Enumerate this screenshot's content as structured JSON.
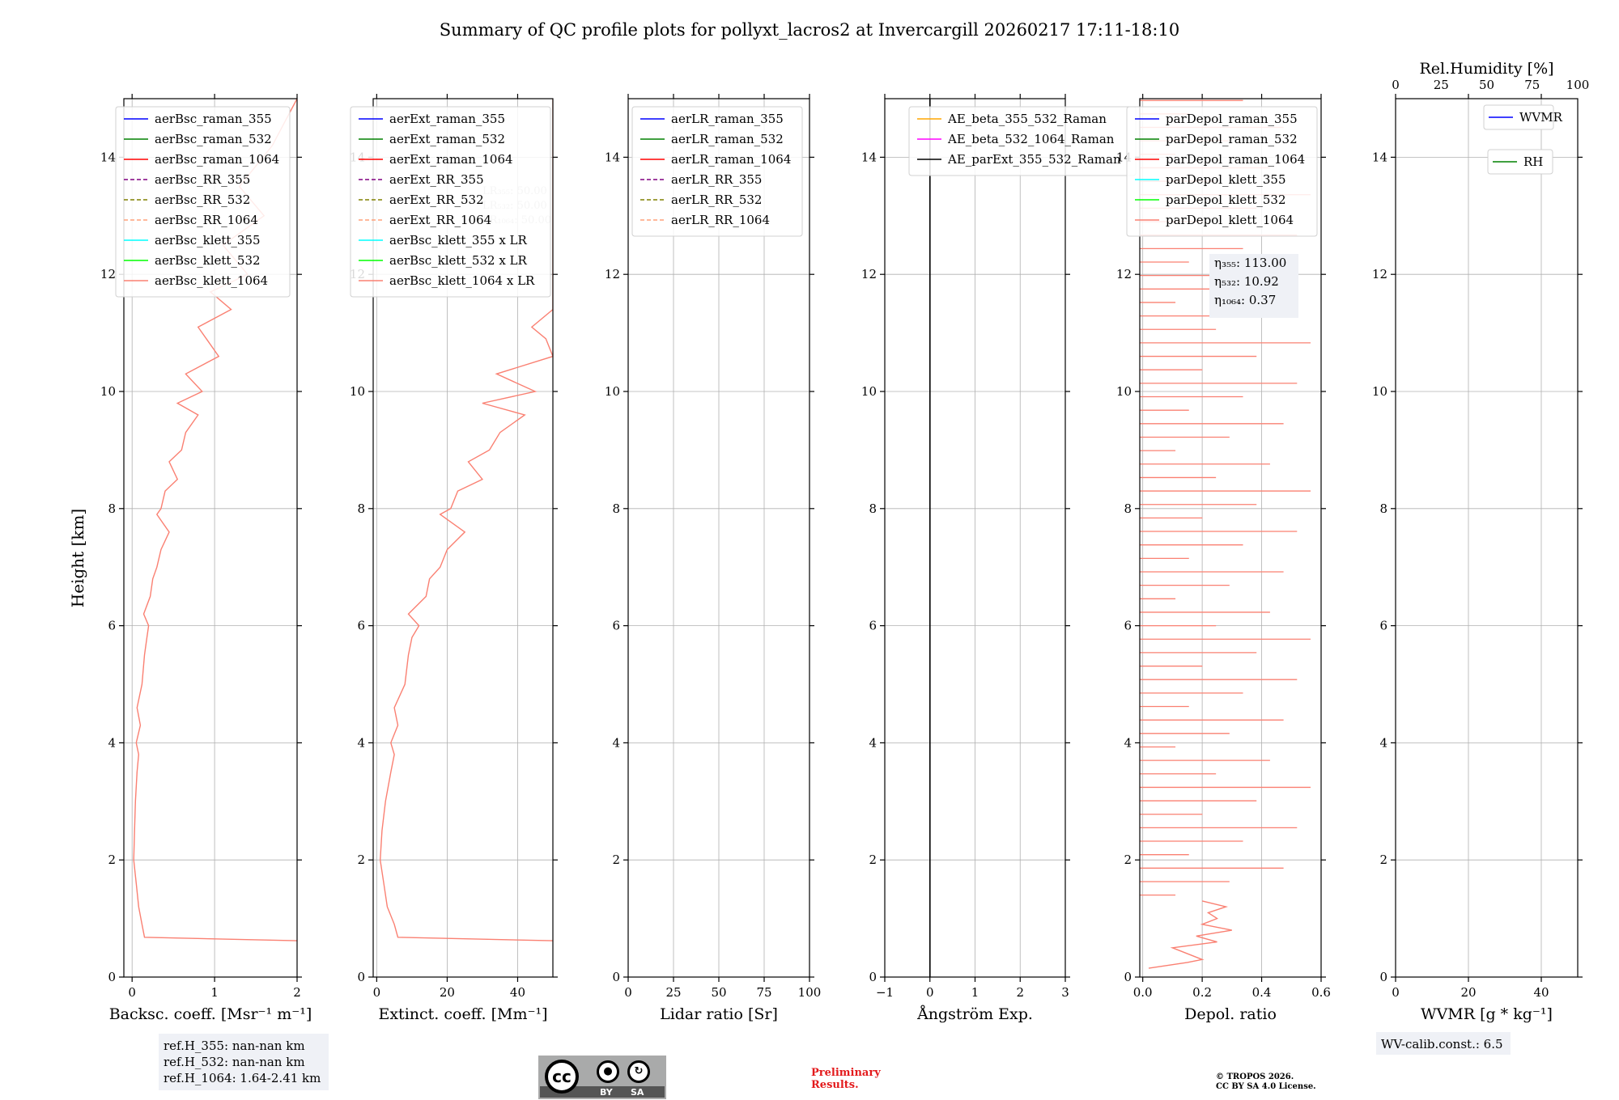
{
  "title": "Summary of QC profile plots for pollyxt_lacros2 at Invercargill 20260217 17:11-18:10",
  "ylabel": "Height [km]",
  "colors": {
    "profile": "#fa8072",
    "raman_355": "#0000ff",
    "raman_532": "#008000",
    "raman_1064": "#ff0000",
    "rr_355": "#800080",
    "rr_532": "#808000",
    "rr_1064": "#ffa07a",
    "klett_355": "#00ffff",
    "klett_532": "#00ff00",
    "klett_1064": "#fa8072",
    "ae_1": "#ffa500",
    "ae_2": "#ff00ff",
    "ae_3": "#000000",
    "wvmr": "#0000ff",
    "rh": "#008000",
    "preliminary": "#e31a1c"
  },
  "chart_data": [
    {
      "type": "line",
      "id": "bsc",
      "xlabel": "Backsc. coeff. [Msr⁻¹ m⁻¹]",
      "xlim": [
        -0.1,
        2
      ],
      "ylim": [
        0,
        15
      ],
      "xticks": [
        0,
        1,
        2
      ],
      "yticks": [
        0,
        2,
        4,
        6,
        8,
        10,
        12,
        14
      ],
      "legend": [
        "aerBsc_raman_355",
        "aerBsc_raman_532",
        "aerBsc_raman_1064",
        "aerBsc_RR_355",
        "aerBsc_RR_532",
        "aerBsc_RR_1064",
        "aerBsc_klett_355",
        "aerBsc_klett_532",
        "aerBsc_klett_1064"
      ],
      "series": [
        {
          "name": "aerBsc_klett_1064",
          "x": [
            2.0,
            0.15,
            0.12,
            0.08,
            0.05,
            0.02,
            0.03,
            0.04,
            0.06,
            0.08,
            0.05,
            0.1,
            0.06,
            0.12,
            0.15,
            0.18,
            0.2,
            0.14,
            0.22,
            0.25,
            0.3,
            0.35,
            0.45,
            0.3,
            0.35,
            0.4,
            0.55,
            0.45,
            0.6,
            0.65,
            0.8,
            0.55,
            0.85,
            0.65,
            1.05,
            0.9,
            0.8,
            1.2,
            0.95,
            1.4,
            1.1,
            1.6,
            1.3,
            1.7,
            2.0
          ],
          "y": [
            0.62,
            0.68,
            0.9,
            1.2,
            1.6,
            2.0,
            2.5,
            3.0,
            3.5,
            3.8,
            4.0,
            4.3,
            4.6,
            5.0,
            5.5,
            5.8,
            6.0,
            6.2,
            6.5,
            6.8,
            7.0,
            7.3,
            7.6,
            7.9,
            8.0,
            8.3,
            8.5,
            8.8,
            9.0,
            9.3,
            9.6,
            9.8,
            10.0,
            10.3,
            10.6,
            10.9,
            11.1,
            11.4,
            11.7,
            12.0,
            12.5,
            13.0,
            13.5,
            14.2,
            15.0
          ]
        }
      ]
    },
    {
      "type": "line",
      "id": "ext",
      "xlabel": "Extinct. coeff. [Mm⁻¹]",
      "xlim": [
        -1,
        50
      ],
      "ylim": [
        0,
        15
      ],
      "xticks": [
        0,
        20,
        40
      ],
      "yticks": [
        0,
        2,
        4,
        6,
        8,
        10,
        12,
        14
      ],
      "legend": [
        "aerExt_raman_355",
        "aerExt_raman_532",
        "aerExt_raman_1064",
        "aerExt_RR_355",
        "aerExt_RR_532",
        "aerExt_RR_1064",
        "aerBsc_klett_355 x LR",
        "aerBsc_klett_532 x LR",
        "aerBsc_klett_1064 x LR"
      ],
      "annotation": [
        "LR₃₅₅: 50.00",
        "LR₅₃₂: 50.00",
        "LR₁₀₆₄: 50.00"
      ],
      "series": [
        {
          "name": "aerBsc_klett_1064 x LR",
          "x": [
            50,
            6,
            5,
            3,
            2,
            1,
            1.5,
            2.5,
            4,
            5,
            4,
            6,
            5,
            8,
            9,
            10,
            12,
            9,
            14,
            15,
            18,
            20,
            25,
            18,
            21,
            23,
            30,
            26,
            32,
            35,
            42,
            30,
            45,
            34,
            50,
            48,
            44,
            50,
            50
          ],
          "y": [
            0.62,
            0.68,
            0.9,
            1.2,
            1.6,
            2.0,
            2.5,
            3.0,
            3.5,
            3.8,
            4.0,
            4.3,
            4.6,
            5.0,
            5.5,
            5.8,
            6.0,
            6.2,
            6.5,
            6.8,
            7.0,
            7.3,
            7.6,
            7.9,
            8.0,
            8.3,
            8.5,
            8.8,
            9.0,
            9.3,
            9.6,
            9.8,
            10.0,
            10.3,
            10.6,
            10.9,
            11.1,
            11.4,
            15.0
          ]
        }
      ]
    },
    {
      "type": "line",
      "id": "lr",
      "xlabel": "Lidar ratio [Sr]",
      "xlim": [
        0,
        100
      ],
      "ylim": [
        0,
        15
      ],
      "xticks": [
        0,
        25,
        50,
        75,
        100
      ],
      "yticks": [
        0,
        2,
        4,
        6,
        8,
        10,
        12,
        14
      ],
      "legend": [
        "aerLR_raman_355",
        "aerLR_raman_532",
        "aerLR_raman_1064",
        "aerLR_RR_355",
        "aerLR_RR_532",
        "aerLR_RR_1064"
      ],
      "series": []
    },
    {
      "type": "line",
      "id": "ae",
      "xlabel": "Ångström Exp.",
      "xlim": [
        -1,
        3
      ],
      "ylim": [
        0,
        15
      ],
      "xticks": [
        -1,
        0,
        1,
        2,
        3
      ],
      "yticks": [
        0,
        2,
        4,
        6,
        8,
        10,
        12,
        14
      ],
      "legend": [
        "AE_beta_355_532_Raman",
        "AE_beta_532_1064_Raman",
        "AE_parExt_355_532_Raman"
      ],
      "series": [
        {
          "name": "zero-line",
          "x": [
            0,
            0
          ],
          "y": [
            0,
            15
          ]
        }
      ]
    },
    {
      "type": "line",
      "id": "depol",
      "xlabel": "Depol. ratio",
      "xlim": [
        -0.01,
        0.6
      ],
      "ylim": [
        0,
        15
      ],
      "xticks": [
        0.0,
        0.2,
        0.4,
        0.6
      ],
      "yticks": [
        0,
        2,
        4,
        6,
        8,
        10,
        12,
        14
      ],
      "legend": [
        "parDepol_raman_355",
        "parDepol_raman_532",
        "parDepol_raman_1064",
        "parDepol_klett_355",
        "parDepol_klett_532",
        "parDepol_klett_1064"
      ],
      "annotation": [
        "η₃₅₅: 113.00",
        "η₅₃₂: 10.92",
        "η₁₀₆₄: 0.37"
      ],
      "series": [
        {
          "name": "parDepol_klett_1064",
          "x": [
            0.02,
            0.15,
            0.2,
            0.1,
            0.25,
            0.18,
            0.3,
            0.2,
            0.25,
            0.22,
            0.28,
            0.2
          ],
          "y": [
            0.15,
            0.25,
            0.3,
            0.5,
            0.6,
            0.7,
            0.8,
            0.9,
            1.0,
            1.1,
            1.2,
            1.3
          ]
        }
      ]
    },
    {
      "type": "line",
      "id": "wv",
      "xlabel": "WVMR [g * kg⁻¹]",
      "xlim": [
        0,
        50
      ],
      "ylim": [
        0,
        15
      ],
      "xticks": [
        0,
        20,
        40
      ],
      "yticks": [
        0,
        2,
        4,
        6,
        8,
        10,
        12,
        14
      ],
      "top_xlabel": "Rel.Humidity [%]",
      "top_xlim": [
        0,
        100
      ],
      "top_xticks": [
        0,
        25,
        50,
        75,
        100
      ],
      "legend": [
        "WVMR",
        "RH"
      ],
      "series": []
    }
  ],
  "footer": {
    "ref_h": [
      "ref.H_355: nan-nan km",
      "ref.H_532: nan-nan km",
      "ref.H_1064: 1.64-2.41 km"
    ],
    "wv_calib": "WV-calib.const.: 6.5",
    "preliminary": [
      "Preliminary",
      "Results."
    ],
    "copyright": [
      "© TROPOS 2026.",
      "CC BY SA 4.0 License."
    ],
    "license": {
      "cc": "cc",
      "by": "BY",
      "sa": "SA"
    }
  }
}
